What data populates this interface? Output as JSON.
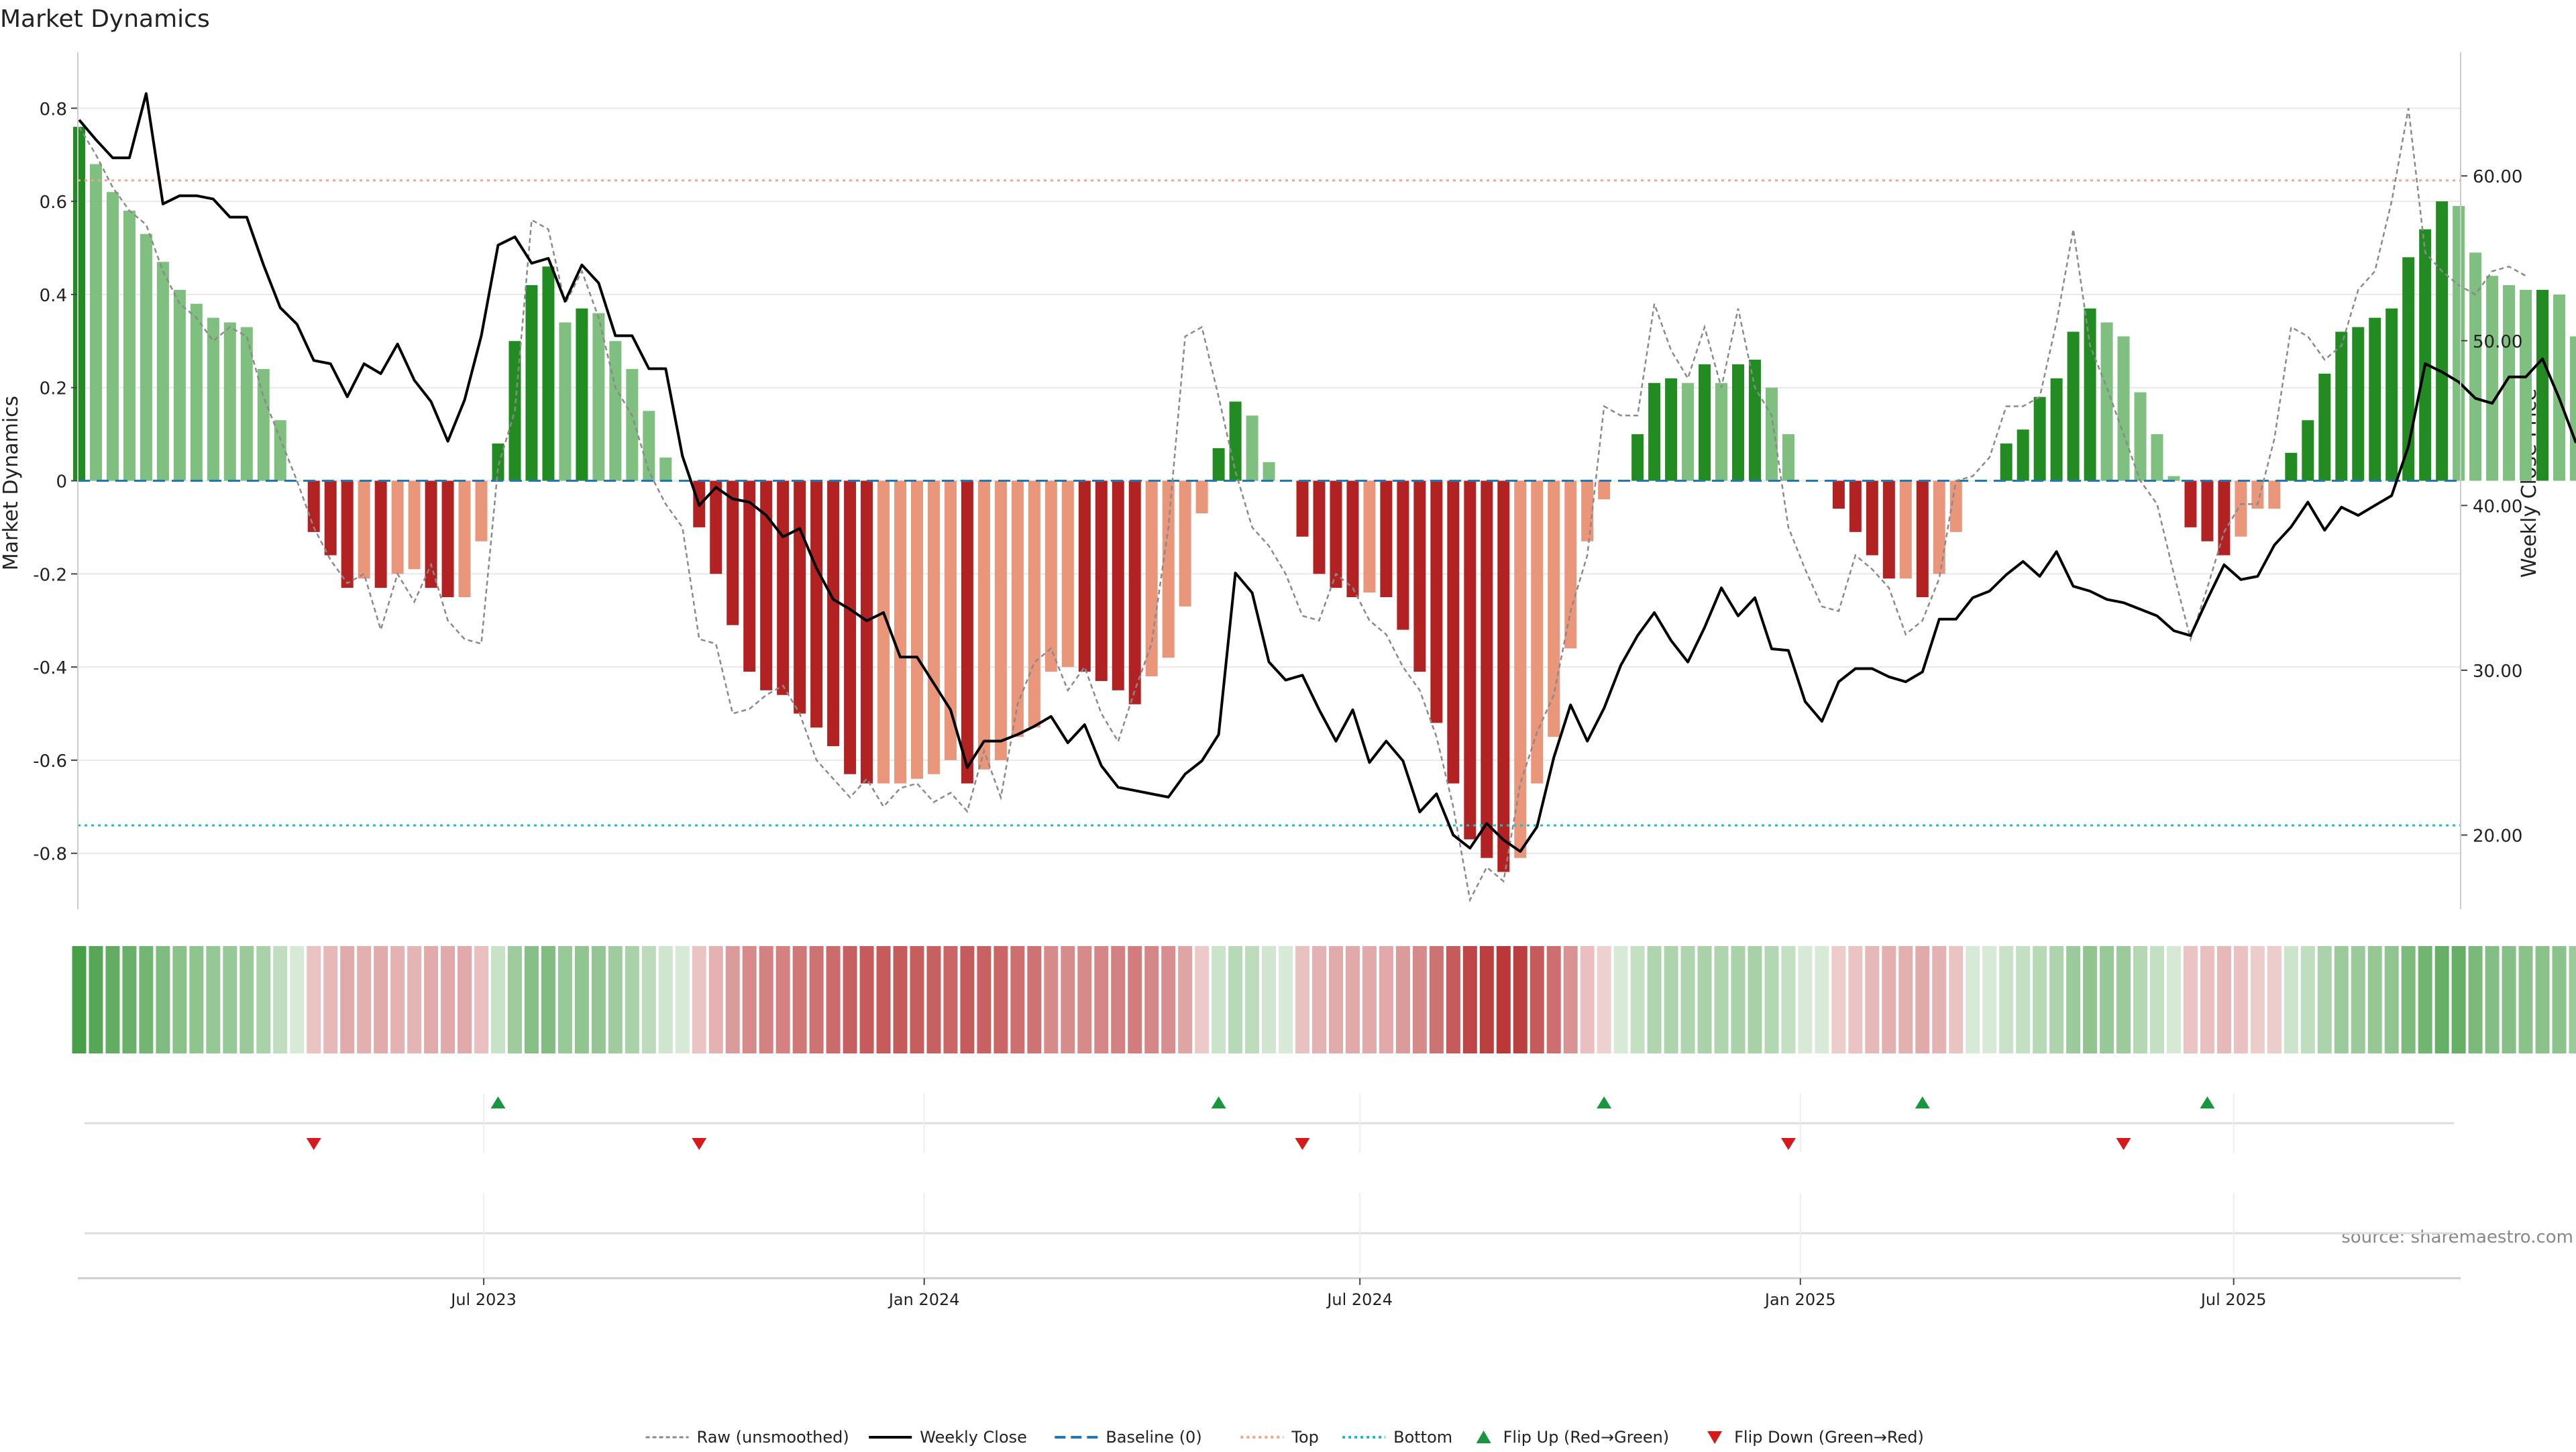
{
  "chart_data": {
    "type": "bar",
    "title": "Market Dynamics",
    "ylabel_left": "Market Dynamics",
    "ylabel_right": "Weekly Close Price",
    "source": "source: sharemaestro.com",
    "ylim_left": [
      -0.92,
      0.92
    ],
    "yticks_left": [
      0.8,
      0.6,
      0.4,
      0.2,
      0,
      -0.2,
      -0.4,
      -0.6,
      -0.8
    ],
    "ylim_right": [
      15.5,
      67.5
    ],
    "yticks_right": [
      "60.00",
      "50.00",
      "40.00",
      "30.00",
      "20.00"
    ],
    "ytick_values_right": [
      60,
      50,
      40,
      30,
      20
    ],
    "top_level": 0.645,
    "bottom_level": -0.74,
    "x_start": "2023-01-13",
    "x_step_days": 7,
    "x_end": "2025-10-01",
    "xticks": [
      {
        "label": "Jul 2023",
        "date": "2023-07-01"
      },
      {
        "label": "Jan 2024",
        "date": "2024-01-01"
      },
      {
        "label": "Jul 2024",
        "date": "2024-07-01"
      },
      {
        "label": "Jan 2025",
        "date": "2025-01-01"
      },
      {
        "label": "Jul 2025",
        "date": "2025-07-01"
      }
    ],
    "colors": {
      "strong_green": "#228b22",
      "light_green": "#7fbf7f",
      "strong_red": "#b22222",
      "light_red": "#e9967a",
      "close_line": "#000000",
      "raw_line": "#8a8a8a",
      "baseline": "#1f77b4",
      "top": "#f4a582",
      "bottom": "#17becf",
      "flip_up": "#1a9641",
      "flip_down": "#d7191c",
      "grid": "#e8e8e8"
    },
    "series": [
      {
        "name": "Market Dynamics",
        "values": [
          0.76,
          0.68,
          0.62,
          0.58,
          0.53,
          0.47,
          0.41,
          0.38,
          0.35,
          0.34,
          0.33,
          0.24,
          0.13,
          0.0,
          -0.11,
          -0.16,
          -0.23,
          -0.21,
          -0.23,
          -0.2,
          -0.19,
          -0.23,
          -0.25,
          -0.25,
          -0.13,
          0.08,
          0.3,
          0.42,
          0.46,
          0.34,
          0.37,
          0.36,
          0.3,
          0.24,
          0.15,
          0.05,
          0.0,
          -0.1,
          -0.2,
          -0.31,
          -0.41,
          -0.45,
          -0.46,
          -0.5,
          -0.53,
          -0.57,
          -0.63,
          -0.65,
          -0.65,
          -0.65,
          -0.64,
          -0.63,
          -0.6,
          -0.65,
          -0.62,
          -0.6,
          -0.55,
          -0.53,
          -0.41,
          -0.4,
          -0.41,
          -0.43,
          -0.45,
          -0.48,
          -0.42,
          -0.38,
          -0.27,
          -0.07,
          0.07,
          0.17,
          0.14,
          0.04,
          0.0,
          -0.12,
          -0.2,
          -0.23,
          -0.25,
          -0.24,
          -0.25,
          -0.32,
          -0.41,
          -0.52,
          -0.65,
          -0.77,
          -0.81,
          -0.84,
          -0.81,
          -0.65,
          -0.55,
          -0.36,
          -0.13,
          -0.04,
          0.0,
          0.1,
          0.21,
          0.22,
          0.21,
          0.25,
          0.21,
          0.25,
          0.26,
          0.2,
          0.1,
          0.0,
          0.0,
          -0.06,
          -0.11,
          -0.16,
          -0.21,
          -0.21,
          -0.25,
          -0.2,
          -0.11,
          0.0,
          0.0,
          0.08,
          0.11,
          0.18,
          0.22,
          0.32,
          0.37,
          0.34,
          0.31,
          0.19,
          0.1,
          0.01,
          -0.1,
          -0.13,
          -0.16,
          -0.12,
          -0.06,
          -0.06,
          0.06,
          0.13,
          0.23,
          0.32,
          0.33,
          0.35,
          0.37,
          0.48,
          0.54,
          0.6,
          0.59,
          0.49,
          0.44,
          0.42,
          0.41,
          0.41,
          0.4,
          0.31
        ]
      },
      {
        "name": "Raw (unsmoothed)",
        "values": [
          0.76,
          0.7,
          0.63,
          0.58,
          0.55,
          0.45,
          0.38,
          0.35,
          0.3,
          0.33,
          0.31,
          0.18,
          0.09,
          0.0,
          -0.1,
          -0.17,
          -0.22,
          -0.2,
          -0.32,
          -0.2,
          -0.26,
          -0.18,
          -0.3,
          -0.34,
          -0.35,
          0.03,
          0.15,
          0.56,
          0.54,
          0.38,
          0.45,
          0.35,
          0.2,
          0.14,
          0.02,
          -0.05,
          -0.1,
          -0.34,
          -0.35,
          -0.5,
          -0.49,
          -0.46,
          -0.44,
          -0.5,
          -0.6,
          -0.64,
          -0.68,
          -0.64,
          -0.7,
          -0.66,
          -0.65,
          -0.69,
          -0.67,
          -0.71,
          -0.58,
          -0.68,
          -0.48,
          -0.39,
          -0.36,
          -0.45,
          -0.4,
          -0.5,
          -0.56,
          -0.45,
          -0.35,
          -0.1,
          0.31,
          0.33,
          0.18,
          0.02,
          -0.1,
          -0.14,
          -0.2,
          -0.29,
          -0.3,
          -0.2,
          -0.23,
          -0.3,
          -0.33,
          -0.4,
          -0.45,
          -0.55,
          -0.7,
          -0.9,
          -0.83,
          -0.86,
          -0.65,
          -0.54,
          -0.46,
          -0.28,
          -0.16,
          0.16,
          0.14,
          0.14,
          0.38,
          0.28,
          0.22,
          0.33,
          0.2,
          0.37,
          0.2,
          0.14,
          -0.1,
          -0.19,
          -0.27,
          -0.28,
          -0.16,
          -0.19,
          -0.23,
          -0.33,
          -0.3,
          -0.21,
          0.0,
          0.01,
          0.05,
          0.16,
          0.16,
          0.18,
          0.34,
          0.54,
          0.29,
          0.2,
          0.1,
          0.0,
          -0.05,
          -0.2,
          -0.34,
          -0.23,
          -0.11,
          -0.05,
          -0.05,
          0.09,
          0.33,
          0.31,
          0.26,
          0.29,
          0.41,
          0.45,
          0.6,
          0.8,
          0.49,
          0.45,
          0.42,
          0.4,
          0.45,
          0.46,
          0.44
        ]
      },
      {
        "name": "Weekly Close",
        "values": [
          63.4,
          62.2,
          61.1,
          61.1,
          65.0,
          58.3,
          58.8,
          58.8,
          58.6,
          57.5,
          57.5,
          54.6,
          52.0,
          51.0,
          48.8,
          48.6,
          46.6,
          48.6,
          48.0,
          49.8,
          47.6,
          46.3,
          43.9,
          46.4,
          50.3,
          55.8,
          56.3,
          54.7,
          55.0,
          52.4,
          54.6,
          53.5,
          50.3,
          50.3,
          48.3,
          48.3,
          43.0,
          40.0,
          41.1,
          40.4,
          40.2,
          39.4,
          38.1,
          38.6,
          36.2,
          34.3,
          33.7,
          33.0,
          33.5,
          30.8,
          30.8,
          29.2,
          27.6,
          24.1,
          25.7,
          25.7,
          26.1,
          26.6,
          27.2,
          25.6,
          26.7,
          24.2,
          22.9,
          22.7,
          22.5,
          22.3,
          23.7,
          24.5,
          26.1,
          35.9,
          34.7,
          30.5,
          29.4,
          29.7,
          27.6,
          25.7,
          27.6,
          24.4,
          25.7,
          24.5,
          21.4,
          22.5,
          20.0,
          19.2,
          20.7,
          19.7,
          19.0,
          20.5,
          24.7,
          27.9,
          25.7,
          27.7,
          30.3,
          32.1,
          33.5,
          31.8,
          30.5,
          32.6,
          35.0,
          33.3,
          34.4,
          31.3,
          31.2,
          28.1,
          26.9,
          29.3,
          30.1,
          30.1,
          29.6,
          29.3,
          29.9,
          33.1,
          33.1,
          34.4,
          34.8,
          35.8,
          36.6,
          35.7,
          37.2,
          35.1,
          34.8,
          34.3,
          34.1,
          33.7,
          33.3,
          32.4,
          32.1,
          34.3,
          36.4,
          35.5,
          35.7,
          37.6,
          38.7,
          40.2,
          38.5,
          39.9,
          39.4,
          40.0,
          40.6,
          43.6,
          48.6,
          48.1,
          47.5,
          46.5,
          46.2,
          47.8,
          47.8,
          48.9,
          46.5,
          43.8
        ]
      }
    ],
    "flip_up_indices": [
      25,
      68,
      91,
      110,
      127
    ],
    "flip_down_indices": [
      14,
      37,
      73,
      102,
      122
    ],
    "legend": {
      "placement": "bottom-center",
      "items": [
        {
          "label": "Raw (unsmoothed)",
          "kind": "dashed-gray"
        },
        {
          "label": "Weekly Close",
          "kind": "solid-black"
        },
        {
          "label": "Baseline (0)",
          "kind": "dashed-blue"
        },
        {
          "label": "Top",
          "kind": "dotted-orange"
        },
        {
          "label": "Bottom",
          "kind": "dotted-cyan"
        },
        {
          "label": "Flip Up (Red→Green)",
          "kind": "triangle-up"
        },
        {
          "label": "Flip Down (Green→Red)",
          "kind": "triangle-down"
        }
      ]
    }
  }
}
